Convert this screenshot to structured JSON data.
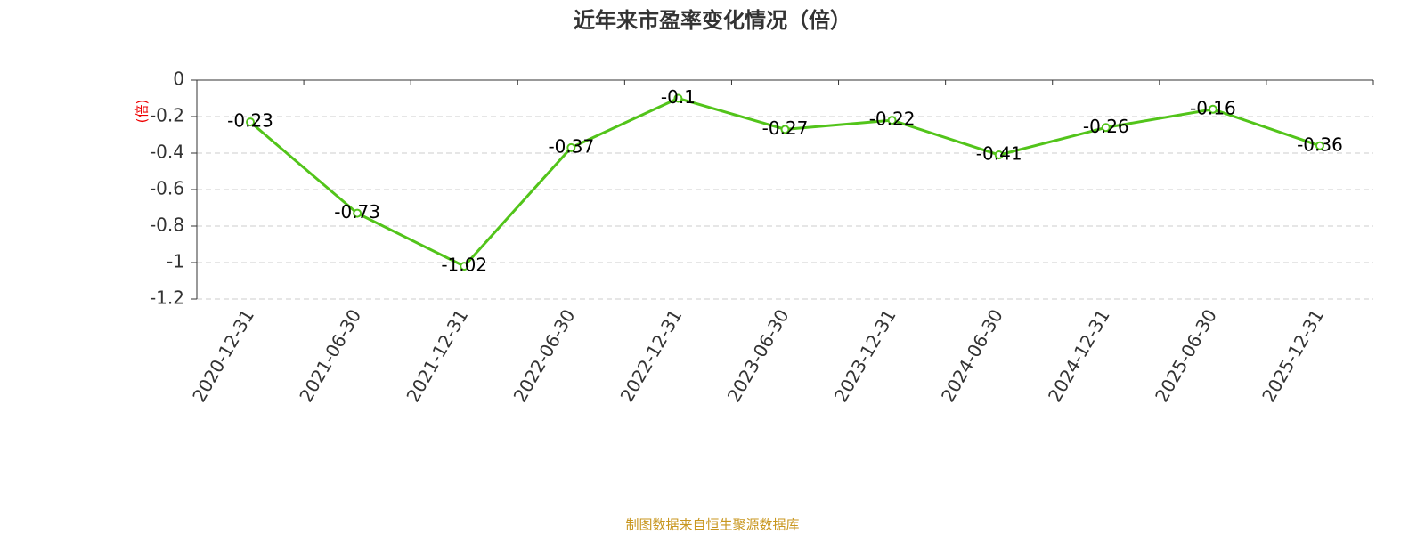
{
  "chart_data": {
    "type": "line",
    "title": "近年来市盈率变化情况（倍）",
    "y_label": "(倍)",
    "source": "制图数据来自恒生聚源数据库",
    "categories": [
      "2020-12-31",
      "2021-06-30",
      "2021-12-31",
      "2022-06-30",
      "2022-12-31",
      "2023-06-30",
      "2023-12-31",
      "2024-06-30",
      "2024-12-31",
      "2025-06-30",
      "2025-12-31"
    ],
    "values": [
      -0.23,
      -0.73,
      -1.02,
      -0.37,
      -0.1,
      -0.27,
      -0.22,
      -0.41,
      -0.26,
      -0.16,
      -0.36
    ],
    "color": "#52c41a",
    "ylim": [
      -1.2,
      0
    ],
    "yticks": [
      0,
      -0.2,
      -0.4,
      -0.6,
      -0.8,
      -1,
      -1.2
    ],
    "grid": true
  }
}
